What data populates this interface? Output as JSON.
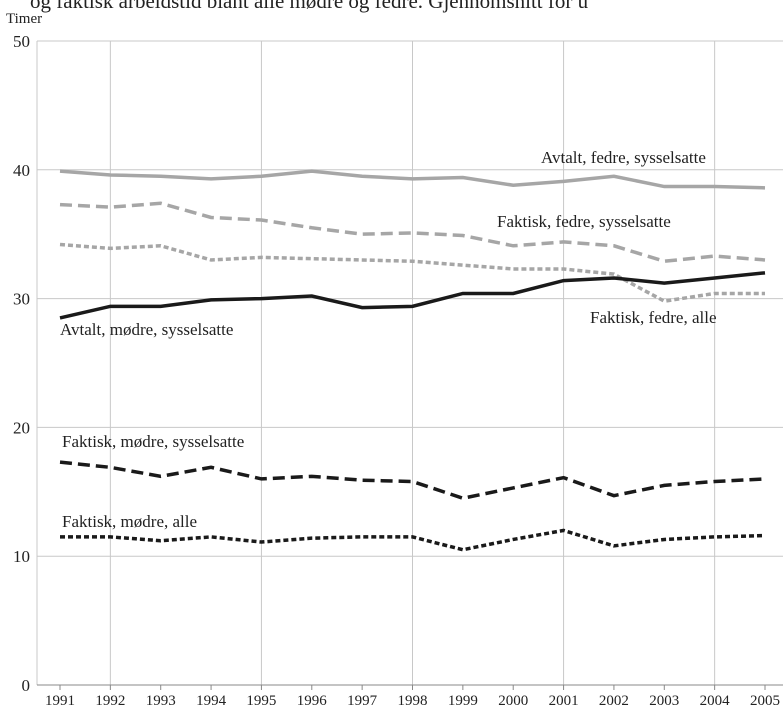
{
  "chart_data": {
    "type": "line",
    "title": "og faktisk arbeidstid blant alle mødre og fedre. Gjennomsnitt for u",
    "y_label": "Timer",
    "categories": [
      "1991",
      "1992",
      "1993",
      "1994",
      "1995",
      "1996",
      "1997",
      "1998",
      "1999",
      "2000",
      "2001",
      "2002",
      "2003",
      "2004",
      "2005"
    ],
    "ylim": [
      0,
      50
    ],
    "yticks": [
      0,
      10,
      20,
      30,
      40,
      50
    ],
    "grid": true,
    "series": [
      {
        "name": "Avtalt, fedre, sysselsatte",
        "color": "#a6a6a6",
        "dash": "solid",
        "values": [
          39.9,
          39.6,
          39.5,
          39.3,
          39.5,
          39.9,
          39.5,
          39.3,
          39.4,
          38.8,
          39.1,
          39.5,
          38.7,
          38.7,
          38.6
        ]
      },
      {
        "name": "Faktisk, fedre, sysselsatte",
        "color": "#a6a6a6",
        "dash": "dashed",
        "values": [
          37.3,
          37.1,
          37.4,
          36.3,
          36.1,
          35.5,
          35.0,
          35.1,
          34.9,
          34.1,
          34.4,
          34.1,
          32.9,
          33.3,
          33.0
        ]
      },
      {
        "name": "Faktisk, fedre, alle",
        "color": "#a6a6a6",
        "dash": "dotted",
        "values": [
          34.2,
          33.9,
          34.1,
          33.0,
          33.2,
          33.1,
          33.0,
          32.9,
          32.6,
          32.3,
          32.3,
          31.9,
          29.8,
          30.4,
          30.4
        ]
      },
      {
        "name": "Avtalt, mødre, sysselsatte",
        "color": "#1a1a1a",
        "dash": "solid",
        "values": [
          28.5,
          29.4,
          29.4,
          29.9,
          30.0,
          30.2,
          29.3,
          29.4,
          30.4,
          30.4,
          31.4,
          31.6,
          31.2,
          31.6,
          32.0
        ]
      },
      {
        "name": "Faktisk, mødre, sysselsatte",
        "color": "#1a1a1a",
        "dash": "dashed",
        "values": [
          17.3,
          16.9,
          16.2,
          16.9,
          16.0,
          16.2,
          15.9,
          15.8,
          14.5,
          15.3,
          16.1,
          14.7,
          15.5,
          15.8,
          16.0
        ]
      },
      {
        "name": "Faktisk, mødre, alle",
        "color": "#1a1a1a",
        "dash": "dotted",
        "values": [
          11.5,
          11.5,
          11.2,
          11.5,
          11.1,
          11.4,
          11.5,
          11.5,
          10.5,
          11.3,
          12.0,
          10.8,
          11.3,
          11.5,
          11.6
        ]
      }
    ]
  }
}
